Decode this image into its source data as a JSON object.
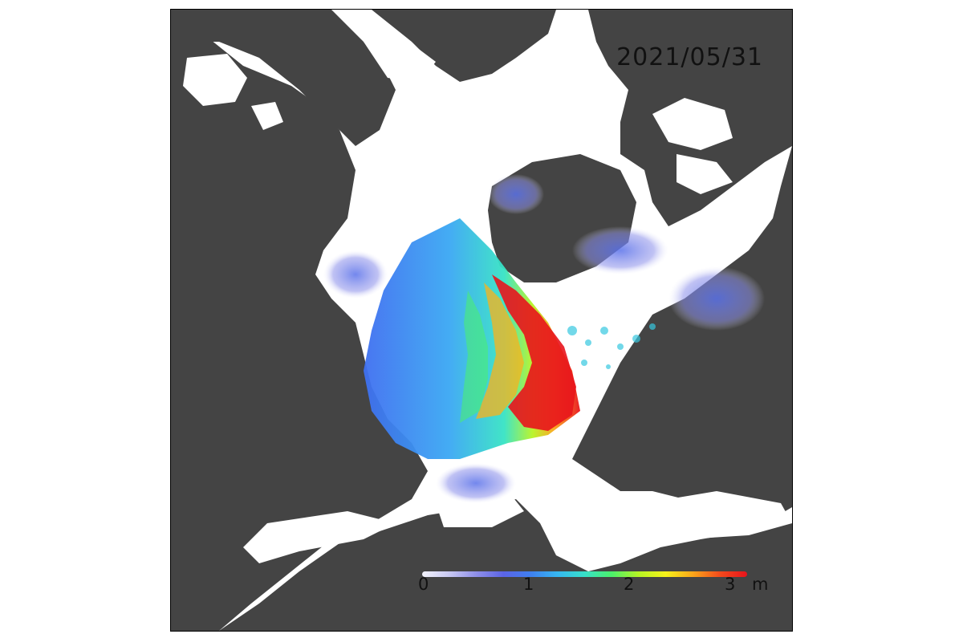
{
  "map": {
    "date": "2021/05/31",
    "colorbar": {
      "ticks": [
        "0",
        "1",
        "2",
        "3"
      ],
      "unit": "m",
      "range": [
        0,
        3
      ],
      "colors": [
        "#f2f2fb",
        "#c9c9f2",
        "#8f8fe8",
        "#5b64e6",
        "#3f7ff0",
        "#36b7f0",
        "#37e0c9",
        "#4bf06a",
        "#b6f524",
        "#f6f21a",
        "#fba61a",
        "#f24a1c",
        "#e8141c"
      ]
    },
    "land_color": "#444444",
    "ocean_color": "#ffffff"
  }
}
